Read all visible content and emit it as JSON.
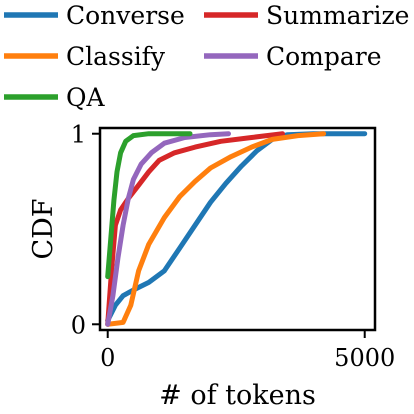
{
  "chart_data": {
    "type": "line",
    "xlabel": "# of tokens",
    "ylabel": "CDF",
    "xlim": [
      -150,
      5200
    ],
    "ylim": [
      -0.03,
      1.03
    ],
    "xticks": [
      {
        "value": 0,
        "label": "0"
      },
      {
        "value": 5000,
        "label": "5000"
      }
    ],
    "yticks": [
      {
        "value": 0,
        "label": "0"
      },
      {
        "value": 1,
        "label": "1"
      }
    ],
    "grid": false,
    "legend_position": "top",
    "series": [
      {
        "name": "Converse",
        "color": "#1f77b4",
        "points": [
          [
            0,
            0.02
          ],
          [
            150,
            0.1
          ],
          [
            300,
            0.15
          ],
          [
            500,
            0.18
          ],
          [
            800,
            0.22
          ],
          [
            1100,
            0.28
          ],
          [
            1400,
            0.4
          ],
          [
            1700,
            0.52
          ],
          [
            2000,
            0.64
          ],
          [
            2300,
            0.74
          ],
          [
            2600,
            0.83
          ],
          [
            2900,
            0.91
          ],
          [
            3200,
            0.97
          ],
          [
            3500,
            0.995
          ],
          [
            4000,
            1.0
          ],
          [
            5000,
            1.0
          ]
        ]
      },
      {
        "name": "Summarize",
        "color": "#d62728",
        "points": [
          [
            0,
            0.0
          ],
          [
            80,
            0.3
          ],
          [
            150,
            0.52
          ],
          [
            250,
            0.6
          ],
          [
            400,
            0.66
          ],
          [
            600,
            0.73
          ],
          [
            800,
            0.8
          ],
          [
            1000,
            0.86
          ],
          [
            1300,
            0.9
          ],
          [
            1700,
            0.93
          ],
          [
            2200,
            0.96
          ],
          [
            2800,
            0.98
          ],
          [
            3400,
            1.0
          ]
        ]
      },
      {
        "name": "Classify",
        "color": "#ff7f0e",
        "points": [
          [
            0,
            0.0
          ],
          [
            300,
            0.01
          ],
          [
            450,
            0.1
          ],
          [
            600,
            0.28
          ],
          [
            800,
            0.42
          ],
          [
            1100,
            0.56
          ],
          [
            1400,
            0.67
          ],
          [
            1700,
            0.75
          ],
          [
            2000,
            0.82
          ],
          [
            2400,
            0.88
          ],
          [
            2800,
            0.93
          ],
          [
            3200,
            0.97
          ],
          [
            3700,
            0.99
          ],
          [
            4200,
            1.0
          ]
        ]
      },
      {
        "name": "Compare",
        "color": "#9467bd",
        "points": [
          [
            0,
            0.0
          ],
          [
            100,
            0.15
          ],
          [
            200,
            0.35
          ],
          [
            300,
            0.52
          ],
          [
            400,
            0.66
          ],
          [
            500,
            0.76
          ],
          [
            650,
            0.84
          ],
          [
            850,
            0.9
          ],
          [
            1100,
            0.95
          ],
          [
            1500,
            0.98
          ],
          [
            2000,
            0.995
          ],
          [
            2350,
            1.0
          ]
        ]
      },
      {
        "name": "QA",
        "color": "#2ca02c",
        "points": [
          [
            0,
            0.25
          ],
          [
            60,
            0.45
          ],
          [
            120,
            0.65
          ],
          [
            180,
            0.8
          ],
          [
            250,
            0.9
          ],
          [
            350,
            0.96
          ],
          [
            500,
            0.99
          ],
          [
            800,
            1.0
          ],
          [
            1600,
            1.0
          ]
        ]
      }
    ]
  }
}
